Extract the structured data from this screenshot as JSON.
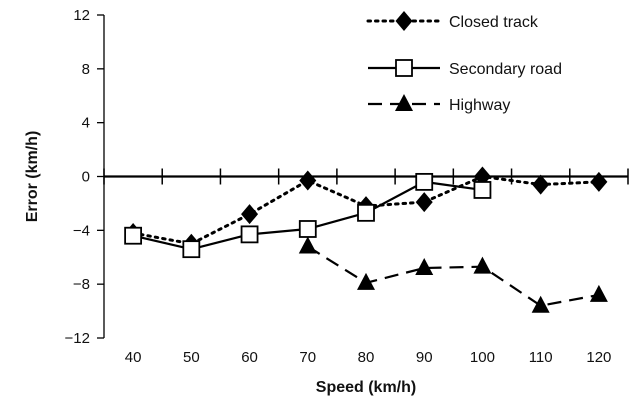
{
  "chart_data": {
    "type": "line",
    "title": "",
    "xlabel": "Speed (km/h)",
    "ylabel": "Error (km/h)",
    "x": [
      40,
      50,
      60,
      70,
      80,
      90,
      100,
      110,
      120
    ],
    "xlim": [
      35,
      125
    ],
    "ylim": [
      -12,
      12
    ],
    "yticks": [
      -12,
      -8,
      -4,
      0,
      4,
      8,
      12
    ],
    "yticklabels": [
      "−12",
      "−8",
      "−4",
      "0",
      "4",
      "8",
      "12"
    ],
    "grid": false,
    "legend_position": "top-right",
    "series": [
      {
        "name": "Closed track",
        "style": "dotted",
        "marker": "diamond",
        "x": [
          40,
          50,
          60,
          70,
          80,
          90,
          100,
          110,
          120
        ],
        "values": [
          -4.2,
          -5.0,
          -2.8,
          -0.3,
          -2.2,
          -1.9,
          0.0,
          -0.6,
          -0.4
        ]
      },
      {
        "name": "Secondary road",
        "style": "solid",
        "marker": "square",
        "x": [
          40,
          50,
          60,
          70,
          80,
          90,
          100
        ],
        "values": [
          -4.4,
          -5.4,
          -4.3,
          -3.9,
          -2.7,
          -0.4,
          -1.0
        ]
      },
      {
        "name": "Highway",
        "style": "dashed",
        "marker": "triangle",
        "x": [
          70,
          80,
          90,
          100,
          110,
          120
        ],
        "values": [
          -5.2,
          -7.9,
          -6.8,
          -6.7,
          -9.6,
          -8.8
        ]
      }
    ],
    "colors": {
      "line": "#000000",
      "square_fill": "#ffffff"
    }
  }
}
